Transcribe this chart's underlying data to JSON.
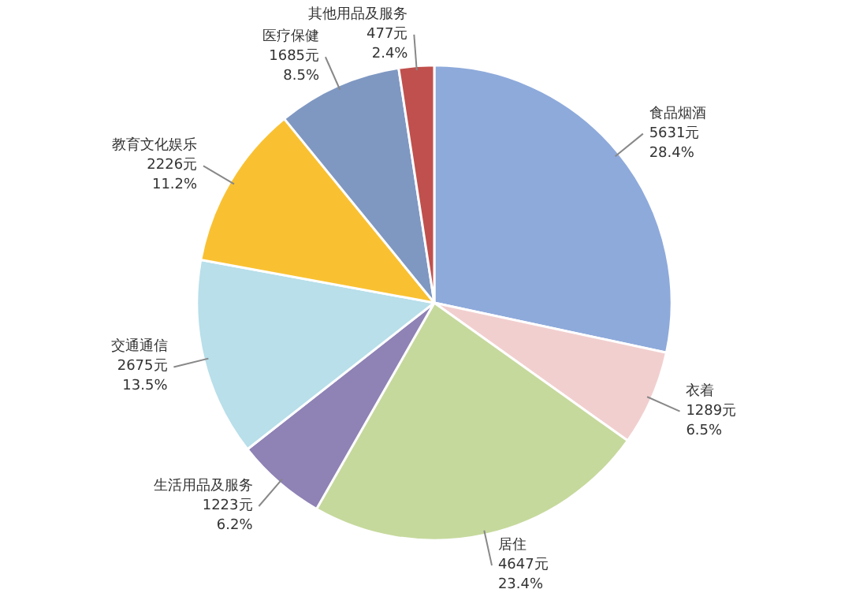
{
  "chart_data": {
    "type": "pie",
    "categories": [
      "食品烟酒",
      "衣着",
      "居住",
      "生活用品及服务",
      "交通通信",
      "教育文化娱乐",
      "医疗保健",
      "其他用品及服务"
    ],
    "values": [
      5631,
      1289,
      4647,
      1223,
      2675,
      2226,
      1685,
      477
    ],
    "value_labels": [
      "5631元\n28.4%",
      "1289元\n6.5%",
      "4647元\n23.4%",
      "1223元\n6.2%",
      "2675元\n13.5%",
      "2226元\n11.2%",
      "1685元\n8.5%",
      "477元\n2.4%"
    ],
    "colors": [
      "#8eaadb",
      "#f2cfcf",
      "#c6d99d",
      "#8f82b5",
      "#b8dfea",
      "#f9c132",
      "#7f98c2",
      "#c0504d"
    ]
  }
}
